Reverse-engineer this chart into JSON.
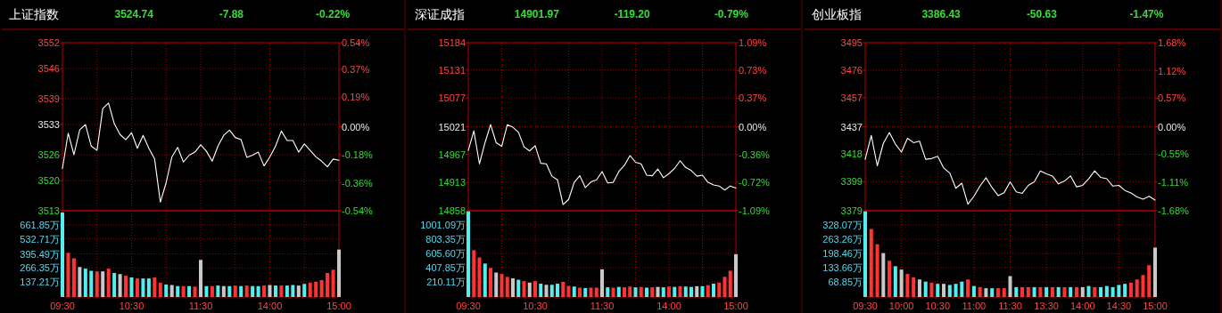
{
  "chart_data": [
    {
      "type": "line",
      "title": "上证指数",
      "annotations": [
        "3524.74",
        "-7.88",
        "-0.22%"
      ],
      "grid": true,
      "categories": [
        null,
        null,
        null,
        null,
        null,
        null,
        null,
        null,
        null,
        null,
        null,
        null,
        null,
        null,
        null,
        null,
        null,
        null,
        null,
        null,
        null,
        null,
        null,
        null,
        null,
        null,
        null,
        null,
        null,
        null,
        null,
        null,
        null,
        null,
        null,
        null,
        null,
        null,
        null,
        null,
        null,
        null,
        null,
        null,
        null,
        null,
        null,
        null,
        null
      ],
      "series": [
        {
          "color": "#ffffff",
          "values": [
            3522.8,
            3531,
            3526,
            3531.8,
            3533,
            3528,
            3527,
            3536.7,
            3538,
            3533.2,
            3530.7,
            3529.5,
            3531.1,
            3527.5,
            3530.5,
            3527.5,
            3525,
            3515,
            3519.5,
            3525.5,
            3527.7,
            3524.3,
            3525.9,
            3526.6,
            3528.3,
            3526.8,
            3524.5,
            3528,
            3530.5,
            3531.7,
            3530,
            3529.5,
            3525.4,
            3525.9,
            3526.6,
            3523.4,
            3525.5,
            3528,
            3531.5,
            3529.3,
            3529.3,
            3526.6,
            3528.5,
            3527,
            3525.5,
            3524.5,
            3523.2,
            3525,
            3524.7
          ]
        }
      ],
      "ylim": [
        3513,
        3552
      ],
      "yticks": [
        3513,
        3520,
        3526,
        3533,
        3539,
        3546,
        3552
      ],
      "y2lim": [
        -0.54,
        0.54
      ],
      "y2ticks": [
        {
          "value": -0.54,
          "label": "-0.54%"
        },
        {
          "value": -0.36,
          "label": "-0.36%"
        },
        {
          "value": -0.18,
          "label": "-0.18%"
        },
        {
          "value": 0,
          "label": "0.00%"
        },
        {
          "value": 0.19,
          "label": "0.19%"
        },
        {
          "value": 0.37,
          "label": "0.37%"
        },
        {
          "value": 0.54,
          "label": "0.54%"
        }
      ]
    },
    {
      "type": "bar",
      "grid": true,
      "categories": [
        "09:30",
        null,
        null,
        null,
        null,
        null,
        null,
        null,
        null,
        null,
        null,
        null,
        "10:30",
        null,
        null,
        null,
        null,
        null,
        null,
        null,
        null,
        null,
        null,
        null,
        "11:30",
        null,
        null,
        null,
        null,
        null,
        null,
        null,
        null,
        null,
        null,
        null,
        "14:00",
        null,
        null,
        null,
        null,
        null,
        null,
        null,
        null,
        null,
        null,
        null,
        "15:00"
      ],
      "values": [
        775,
        405,
        355,
        275,
        260,
        240,
        235,
        235,
        260,
        220,
        210,
        195,
        180,
        170,
        170,
        170,
        180,
        130,
        115,
        110,
        100,
        100,
        100,
        95,
        340,
        100,
        100,
        105,
        100,
        100,
        105,
        100,
        105,
        100,
        100,
        105,
        110,
        105,
        105,
        105,
        110,
        105,
        120,
        130,
        140,
        155,
        220,
        250,
        435
      ],
      "colors": [
        "#55eeee",
        "#ff3333",
        "#ff3333",
        "#c8c8c8",
        "#55eeee",
        "#55eeee",
        "#ff3333",
        "#c8c8c8",
        "#ff3333",
        "#55eeee",
        "#c8c8c8",
        "#ff3333",
        "#55eeee",
        "#ff3333",
        "#55eeee",
        "#55eeee",
        "#ff3333",
        "#ff3333",
        "#55eeee",
        "#c8c8c8",
        "#55eeee",
        "#ff3333",
        "#55eeee",
        "#ff3333",
        "#c8c8c8",
        "#55eeee",
        "#ff3333",
        "#55eeee",
        "#c8c8c8",
        "#55eeee",
        "#ff3333",
        "#55eeee",
        "#ff3333",
        "#55eeee",
        "#55eeee",
        "#ff3333",
        "#c8c8c8",
        "#55eeee",
        "#ff3333",
        "#55eeee",
        "#55eeee",
        "#c8c8c8",
        "#55eeee",
        "#ff3333",
        "#ff3333",
        "#ff3333",
        "#ff3333",
        "#ff3333",
        "#c8c8c8"
      ],
      "ylim": [
        0,
        791
      ],
      "yticks": [
        {
          "value": 137.21,
          "label": "137.21万"
        },
        {
          "value": 266.35,
          "label": "266.35万"
        },
        {
          "value": 395.49,
          "label": "395.49万"
        },
        {
          "value": 532.71,
          "label": "532.71万"
        },
        {
          "value": 661.85,
          "label": "661.85万"
        }
      ]
    },
    {
      "type": "line",
      "title": "深证成指",
      "annotations": [
        "14901.97",
        "-119.20",
        "-0.79%"
      ],
      "grid": true,
      "categories": [
        null,
        null,
        null,
        null,
        null,
        null,
        null,
        null,
        null,
        null,
        null,
        null,
        null,
        null,
        null,
        null,
        null,
        null,
        null,
        null,
        null,
        null,
        null,
        null,
        null,
        null,
        null,
        null,
        null,
        null,
        null,
        null,
        null,
        null,
        null,
        null,
        null,
        null,
        null,
        null,
        null,
        null,
        null,
        null,
        null,
        null,
        null,
        null,
        null
      ],
      "series": [
        {
          "color": "#ffffff",
          "values": [
            14975,
            15013,
            14949,
            14990,
            15025,
            14990,
            14983,
            15025,
            15020,
            15010,
            14982,
            14974,
            14984,
            14950,
            14949,
            14925,
            14918,
            14870,
            14880,
            14913,
            14926,
            14903,
            14914,
            14918,
            14934,
            14912,
            14913,
            14934,
            14946,
            14965,
            14952,
            14949,
            14927,
            14926,
            14939,
            14922,
            14930,
            14940,
            14955,
            14942,
            14936,
            14925,
            14927,
            14913,
            14908,
            14906,
            14898,
            14906,
            14902
          ]
        }
      ],
      "ylim": [
        14858,
        15184
      ],
      "yticks": [
        14858,
        14913,
        14967,
        15021,
        15077,
        15131,
        15184
      ],
      "y2lim": [
        -1.09,
        1.09
      ],
      "y2ticks": [
        {
          "value": -1.09,
          "label": "-1.09%"
        },
        {
          "value": -0.72,
          "label": "-0.72%"
        },
        {
          "value": -0.36,
          "label": "-0.36%"
        },
        {
          "value": 0,
          "label": "0.00%"
        },
        {
          "value": 0.37,
          "label": "0.37%"
        },
        {
          "value": 0.73,
          "label": "0.73%"
        },
        {
          "value": 1.09,
          "label": "1.09%"
        }
      ]
    },
    {
      "type": "bar",
      "grid": true,
      "categories": [
        "09:30",
        null,
        null,
        null,
        null,
        null,
        null,
        null,
        null,
        null,
        null,
        null,
        "10:30",
        null,
        null,
        null,
        null,
        null,
        null,
        null,
        null,
        null,
        null,
        null,
        "11:30",
        null,
        null,
        null,
        null,
        null,
        null,
        null,
        null,
        null,
        null,
        null,
        "14:00",
        null,
        null,
        null,
        null,
        null,
        null,
        null,
        null,
        null,
        null,
        null,
        "15:00"
      ],
      "values": [
        1190,
        650,
        550,
        465,
        405,
        340,
        320,
        280,
        260,
        240,
        220,
        200,
        220,
        185,
        170,
        170,
        185,
        210,
        155,
        145,
        130,
        125,
        130,
        130,
        385,
        135,
        130,
        140,
        135,
        145,
        135,
        140,
        130,
        135,
        140,
        135,
        145,
        140,
        150,
        145,
        140,
        150,
        150,
        165,
        185,
        200,
        280,
        365,
        595
      ],
      "colors": [
        "#55eeee",
        "#ff3333",
        "#ff3333",
        "#55eeee",
        "#ff3333",
        "#c8c8c8",
        "#ff3333",
        "#ff3333",
        "#c8c8c8",
        "#55eeee",
        "#ff3333",
        "#c8c8c8",
        "#ff3333",
        "#55eeee",
        "#c8c8c8",
        "#55eeee",
        "#55eeee",
        "#ff3333",
        "#ff3333",
        "#55eeee",
        "#ff3333",
        "#55eeee",
        "#ff3333",
        "#ff3333",
        "#c8c8c8",
        "#55eeee",
        "#ff3333",
        "#55eeee",
        "#ff3333",
        "#ff3333",
        "#55eeee",
        "#ff3333",
        "#55eeee",
        "#ff3333",
        "#c8c8c8",
        "#55eeee",
        "#ff3333",
        "#55eeee",
        "#ff3333",
        "#55eeee",
        "#55eeee",
        "#c8c8c8",
        "#55eeee",
        "#ff3333",
        "#55eeee",
        "#ff3333",
        "#ff3333",
        "#ff3333",
        "#c8c8c8"
      ],
      "ylim": [
        0,
        1198.83
      ],
      "yticks": [
        {
          "value": 210.11,
          "label": "210.11万"
        },
        {
          "value": 407.85,
          "label": "407.85万"
        },
        {
          "value": 605.6,
          "label": "605.60万"
        },
        {
          "value": 803.35,
          "label": "803.35万"
        },
        {
          "value": 1001.09,
          "label": "1001.09万"
        }
      ]
    },
    {
      "type": "line",
      "title": "创业板指",
      "annotations": [
        "3386.43",
        "-50.63",
        "-1.47%"
      ],
      "grid": true,
      "categories": [
        null,
        null,
        null,
        null,
        null,
        null,
        null,
        null,
        null,
        null,
        null,
        null,
        null,
        null,
        null,
        null,
        null,
        null,
        null,
        null,
        null,
        null,
        null,
        null,
        null,
        null,
        null,
        null,
        null,
        null,
        null,
        null,
        null,
        null,
        null,
        null,
        null,
        null,
        null,
        null,
        null,
        null,
        null,
        null,
        null,
        null,
        null,
        null,
        null
      ],
      "series": [
        {
          "color": "#ffffff",
          "values": [
            3414.5,
            3431,
            3410,
            3425.5,
            3433,
            3425,
            3419.5,
            3429,
            3426,
            3427,
            3414.5,
            3415,
            3416.6,
            3408.5,
            3405,
            3394.5,
            3398,
            3383.5,
            3389,
            3396,
            3401.8,
            3395,
            3389.5,
            3391.5,
            3399,
            3392,
            3391,
            3396.5,
            3399,
            3406.5,
            3404.5,
            3403,
            3397.5,
            3399.5,
            3403,
            3395.5,
            3396.5,
            3401,
            3406.5,
            3402,
            3401.1,
            3396,
            3396.5,
            3393,
            3391.3,
            3388.5,
            3387,
            3389,
            3386.4
          ]
        }
      ],
      "ylim": [
        3379,
        3495
      ],
      "yticks": [
        3379,
        3399,
        3418,
        3437,
        3457,
        3476,
        3495
      ],
      "y2lim": [
        -1.68,
        1.68
      ],
      "y2ticks": [
        {
          "value": -1.68,
          "label": "-1.68%"
        },
        {
          "value": -1.11,
          "label": "-1.11%"
        },
        {
          "value": -0.55,
          "label": "-0.55%"
        },
        {
          "value": 0,
          "label": "0.00%"
        },
        {
          "value": 0.57,
          "label": "0.57%"
        },
        {
          "value": 1.12,
          "label": "1.12%"
        },
        {
          "value": 1.68,
          "label": "1.68%"
        }
      ]
    },
    {
      "type": "bar",
      "grid": true,
      "categories": [
        "09:30",
        null,
        null,
        null,
        null,
        null,
        "10:00",
        null,
        null,
        null,
        null,
        null,
        "10:30",
        null,
        null,
        null,
        null,
        null,
        "11:00",
        null,
        null,
        null,
        null,
        null,
        "11:30",
        null,
        null,
        null,
        null,
        null,
        "13:30",
        null,
        null,
        null,
        null,
        null,
        "14:00",
        null,
        null,
        null,
        null,
        null,
        "14:30",
        null,
        null,
        null,
        null,
        null,
        "15:00"
      ],
      "values": [
        390,
        310,
        240,
        200,
        165,
        140,
        125,
        105,
        90,
        80,
        70,
        65,
        60,
        60,
        55,
        60,
        70,
        80,
        50,
        45,
        40,
        40,
        40,
        40,
        95,
        45,
        45,
        45,
        45,
        45,
        45,
        45,
        45,
        45,
        45,
        45,
        45,
        50,
        45,
        45,
        50,
        45,
        55,
        60,
        65,
        80,
        100,
        145,
        225
      ],
      "colors": [
        "#55eeee",
        "#ff3333",
        "#ff3333",
        "#c8c8c8",
        "#ff3333",
        "#55eeee",
        "#c8c8c8",
        "#ff3333",
        "#ff3333",
        "#c8c8c8",
        "#55eeee",
        "#ff3333",
        "#55eeee",
        "#c8c8c8",
        "#55eeee",
        "#55eeee",
        "#55eeee",
        "#ff3333",
        "#55eeee",
        "#ff3333",
        "#c8c8c8",
        "#55eeee",
        "#ff3333",
        "#ff3333",
        "#c8c8c8",
        "#55eeee",
        "#ff3333",
        "#ff3333",
        "#55eeee",
        "#ff3333",
        "#55eeee",
        "#ff3333",
        "#55eeee",
        "#ff3333",
        "#55eeee",
        "#ff3333",
        "#c8c8c8",
        "#55eeee",
        "#ff3333",
        "#55eeee",
        "#55eeee",
        "#55eeee",
        "#55eeee",
        "#55eeee",
        "#ff3333",
        "#ff3333",
        "#ff3333",
        "#ff3333",
        "#c8c8c8"
      ],
      "ylim": [
        0,
        392.88
      ],
      "yticks": [
        {
          "value": 68.85,
          "label": "68.85万"
        },
        {
          "value": 133.66,
          "label": "133.66万"
        },
        {
          "value": 198.46,
          "label": "198.46万"
        },
        {
          "value": 263.26,
          "label": "263.26万"
        },
        {
          "value": 328.07,
          "label": "328.07万"
        }
      ]
    }
  ]
}
